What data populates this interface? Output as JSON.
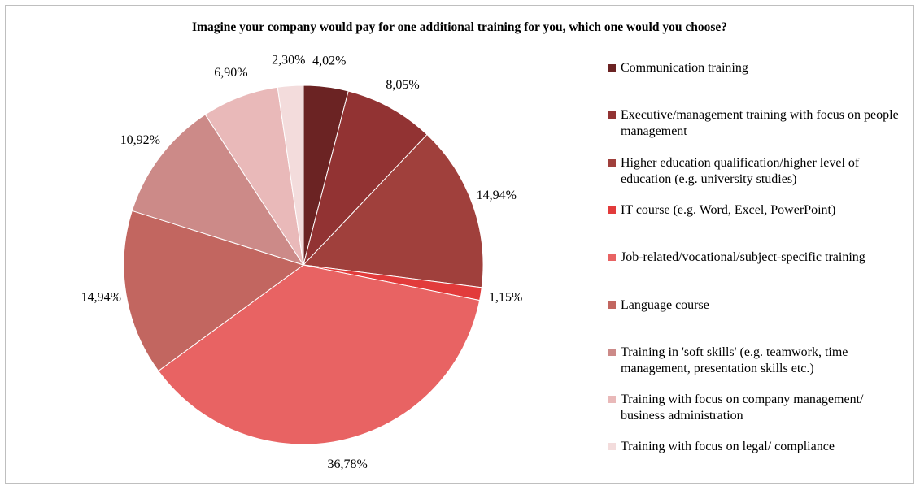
{
  "chart_data": {
    "type": "pie",
    "title": "Imagine your company would pay for one additional training for you, which one would you choose?",
    "categories": [
      "Communication training",
      "Executive/management training with focus on people management",
      "Higher education qualification/higher level of education (e.g. university studies)",
      "IT course (e.g. Word, Excel, PowerPoint)",
      "Job-related/vocational/subject-specific training",
      "Language course",
      "Training in 'soft skills' (e.g. teamwork, time management, presentation skills etc.)",
      "Training with focus on company management/ business administration",
      "Training with focus on legal/ compliance"
    ],
    "values": [
      4.02,
      8.05,
      14.94,
      1.15,
      36.78,
      14.94,
      10.92,
      6.9,
      2.3
    ],
    "value_labels": [
      "4,02%",
      "8,05%",
      "14,94%",
      "1,15%",
      "36,78%",
      "14,94%",
      "10,92%",
      "6,90%",
      "2,30%"
    ],
    "colors": [
      "#6b2323",
      "#923333",
      "#a0403c",
      "#e23b3b",
      "#e86363",
      "#c26660",
      "#cc8a88",
      "#e9b9b9",
      "#f3dcdc"
    ],
    "legend": "right"
  }
}
